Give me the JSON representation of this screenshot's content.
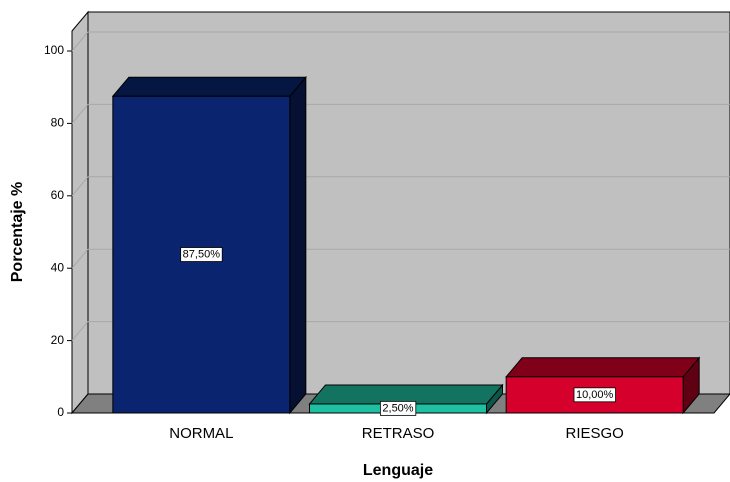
{
  "chart_data": {
    "type": "bar3d",
    "categories": [
      "NORMAL",
      "RETRASO",
      "RIESGO"
    ],
    "values": [
      87.5,
      2.5,
      10
    ],
    "value_labels": [
      "87,50%",
      "2,50%",
      "10,00%"
    ],
    "colors": [
      "#0a2470",
      "#1fc0a2",
      "#d5002b"
    ],
    "xlabel": "Lenguaje",
    "ylabel": "Porcentaje %",
    "ylim": [
      0,
      100
    ],
    "yticks": [
      0,
      20,
      40,
      60,
      80,
      100
    ],
    "grid": true
  }
}
